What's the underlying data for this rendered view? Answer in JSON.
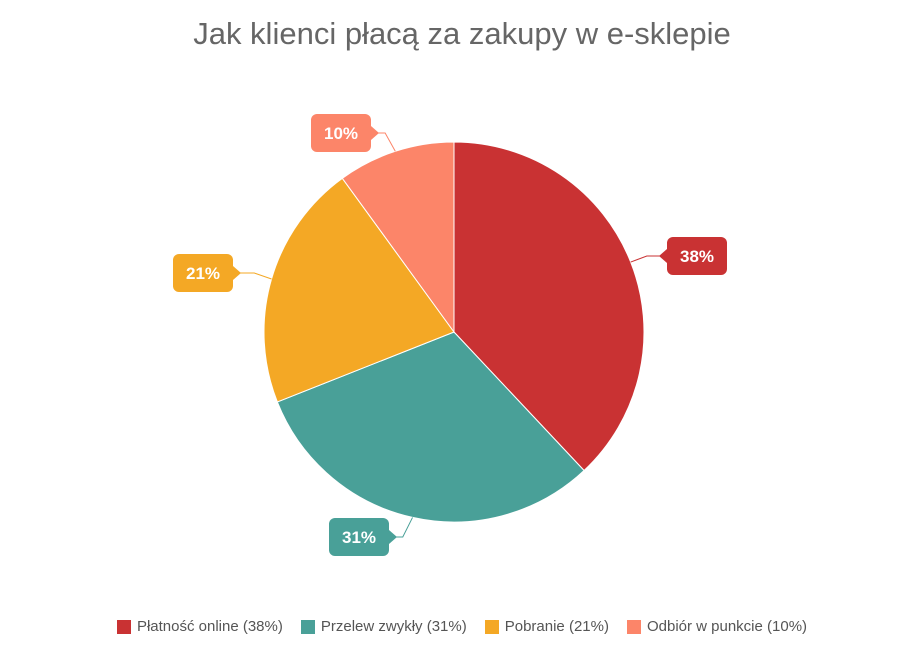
{
  "chart_data": {
    "type": "pie",
    "title": "Jak klienci płacą za zakupy w e-sklepie",
    "categories": [
      "Płatność online",
      "Przelew zwykły",
      "Pobranie",
      "Odbiór w punkcie"
    ],
    "values": [
      38,
      31,
      21,
      10
    ],
    "data_labels": [
      "38%",
      "31%",
      "21%",
      "10%"
    ],
    "legend_labels": [
      "Płatność online (38%)",
      "Przelew zwykły (31%)",
      "Pobranie (21%)",
      "Odbiór w punkcie (10%)"
    ],
    "colors": [
      "#c93233",
      "#49a098",
      "#f4a825",
      "#fc8569"
    ],
    "start_angle_deg": 0,
    "direction": "clockwise",
    "legend_position": "bottom"
  }
}
